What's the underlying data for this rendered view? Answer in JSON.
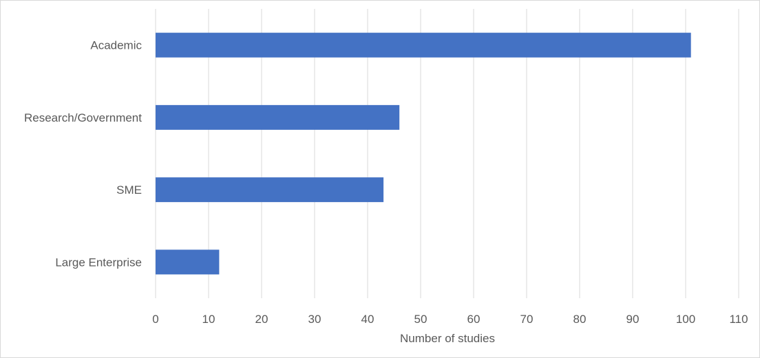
{
  "chart_data": {
    "type": "bar",
    "orientation": "horizontal",
    "categories": [
      "Academic",
      "Research/Government",
      "SME",
      "Large Enterprise"
    ],
    "values": [
      101,
      46,
      43,
      12
    ],
    "xlabel": "Number of studies",
    "ylabel": "",
    "xlim": [
      0,
      110
    ],
    "xticks": [
      "0",
      "10",
      "20",
      "30",
      "40",
      "50",
      "60",
      "70",
      "80",
      "90",
      "100",
      "110"
    ],
    "grid": "vertical",
    "bar_color": "#4472c4",
    "grid_color": "#d9d9d9",
    "text_color": "#595959"
  }
}
